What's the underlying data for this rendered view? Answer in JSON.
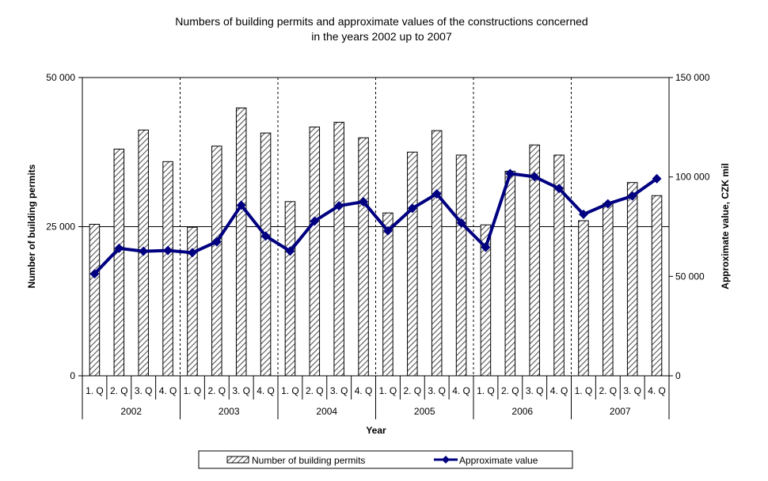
{
  "chart_data": {
    "type": "bar+line",
    "title": [
      "Numbers of building permits and approximate values of the constructions concerned",
      "in  the years 2002 up to 2007"
    ],
    "xlabel": "Year",
    "ylabel_left": "Number of building permits",
    "ylabel_right": "Approximate value, CZK mil",
    "ylim_left": [
      0,
      50000
    ],
    "ylim_right": [
      0,
      150000
    ],
    "yticks_left": [
      "0",
      "25 000",
      "50 000"
    ],
    "yticks_right": [
      "0",
      "50 000",
      "100 000",
      "150 000"
    ],
    "gridline_at_left": 25000,
    "years": [
      "2002",
      "2003",
      "2004",
      "2005",
      "2006",
      "2007"
    ],
    "quarters": [
      "1. Q",
      "2. Q",
      "3. Q",
      "4. Q"
    ],
    "legend_position": "bottom",
    "series": [
      {
        "name": "Number of building permits",
        "kind": "bar",
        "axis": "left",
        "pattern": "diagonal-hatch",
        "values": [
          25400,
          38000,
          41200,
          35900,
          24900,
          38500,
          44900,
          40700,
          29200,
          41700,
          42500,
          39900,
          27300,
          37500,
          41100,
          37000,
          25300,
          34300,
          38700,
          37000,
          26000,
          28900,
          32400,
          30200
        ]
      },
      {
        "name": "Approximate value",
        "kind": "line",
        "axis": "right",
        "color": "#000080",
        "marker": "diamond",
        "values": [
          51300,
          64100,
          62600,
          63000,
          61900,
          67400,
          85800,
          70300,
          62700,
          77800,
          85500,
          87500,
          72900,
          84200,
          91500,
          76900,
          64600,
          101700,
          100100,
          94200,
          81200,
          86500,
          90400,
          99100
        ]
      }
    ]
  }
}
